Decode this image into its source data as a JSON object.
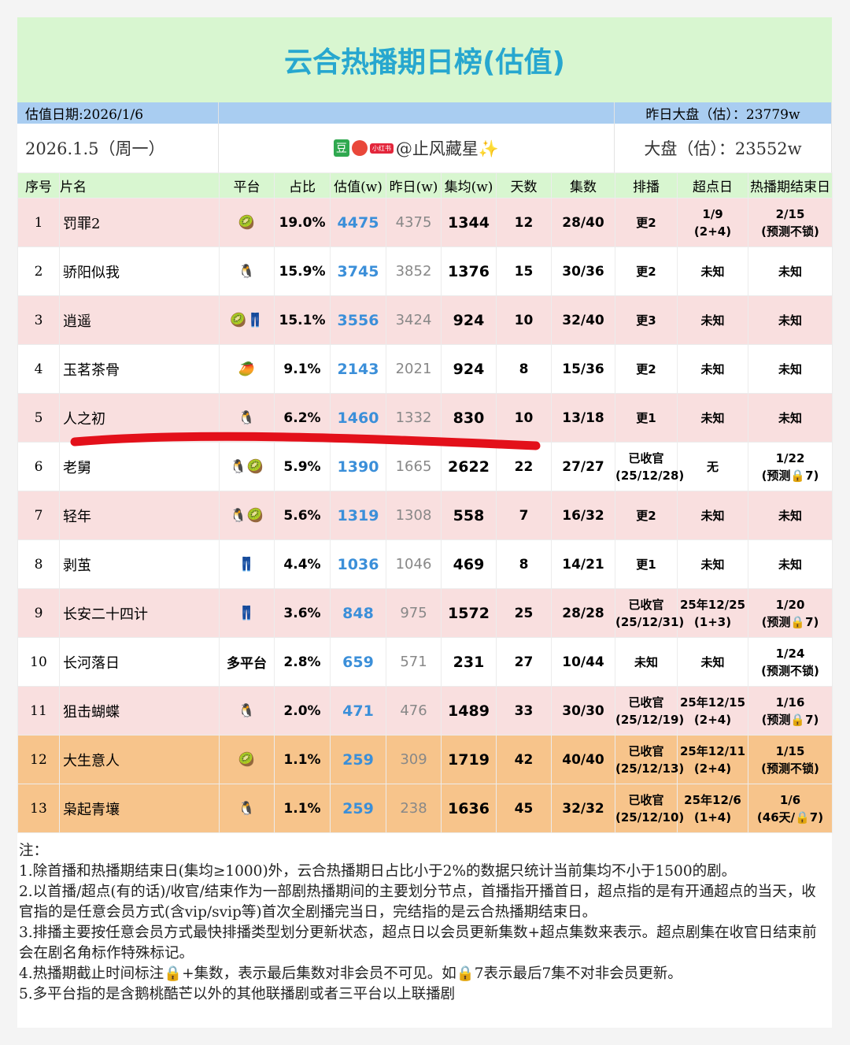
{
  "header": {
    "title": "云合热播期日榜(估值)",
    "estimate_date": "估值日期:2026/1/6",
    "yesterday_total": "昨日大盘（估）：23779w",
    "date": "2026.1.5（周一）",
    "source_badges": [
      "豆",
      "小红书"
    ],
    "author": "@止风藏星✨",
    "total": "大盘（估）：23552w"
  },
  "table": {
    "columns": [
      "序号",
      "片名",
      "平台",
      "占比",
      "估值(w)",
      "昨日(w)",
      "集均(w)",
      "天数",
      "集数",
      "排播",
      "超点日",
      "热播期结束日"
    ],
    "rows": [
      {
        "rank": 1,
        "name": "罚罪2",
        "platform": "🥝",
        "share": "19.0%",
        "est": 4475,
        "yesterday": 4375,
        "avg": 1344,
        "days": 12,
        "eps": "28/40",
        "schedule": [
          "更2"
        ],
        "peak": [
          "1/9",
          "(2+4)"
        ],
        "end": [
          "2/15",
          "(预测不锁)"
        ]
      },
      {
        "rank": 2,
        "name": "骄阳似我",
        "platform": "🐧",
        "share": "15.9%",
        "est": 3745,
        "yesterday": 3852,
        "avg": 1376,
        "days": 15,
        "eps": "30/36",
        "schedule": [
          "更2"
        ],
        "peak": [
          "未知"
        ],
        "end": [
          "未知"
        ]
      },
      {
        "rank": 3,
        "name": "逍遥",
        "platform": "🥝👖",
        "share": "15.1%",
        "est": 3556,
        "yesterday": 3424,
        "avg": 924,
        "days": 10,
        "eps": "32/40",
        "schedule": [
          "更3"
        ],
        "peak": [
          "未知"
        ],
        "end": [
          "未知"
        ]
      },
      {
        "rank": 4,
        "name": "玉茗茶骨",
        "platform": "🥭",
        "share": "9.1%",
        "est": 2143,
        "yesterday": 2021,
        "avg": 924,
        "days": 8,
        "eps": "15/36",
        "schedule": [
          "更2"
        ],
        "peak": [
          "未知"
        ],
        "end": [
          "未知"
        ]
      },
      {
        "rank": 5,
        "name": "人之初",
        "platform": "🐧",
        "share": "6.2%",
        "est": 1460,
        "yesterday": 1332,
        "avg": 830,
        "days": 10,
        "eps": "13/18",
        "schedule": [
          "更1"
        ],
        "peak": [
          "未知"
        ],
        "end": [
          "未知"
        ]
      },
      {
        "rank": 6,
        "name": "老舅",
        "platform": "🐧🥝",
        "share": "5.9%",
        "est": 1390,
        "yesterday": 1665,
        "avg": 2622,
        "days": 22,
        "eps": "27/27",
        "schedule": [
          "已收官",
          "(25/12/28)"
        ],
        "peak": [
          "无"
        ],
        "end": [
          "1/22",
          "(预测🔒7)"
        ]
      },
      {
        "rank": 7,
        "name": "轻年",
        "platform": "🐧🥝",
        "share": "5.6%",
        "est": 1319,
        "yesterday": 1308,
        "avg": 558,
        "days": 7,
        "eps": "16/32",
        "schedule": [
          "更2"
        ],
        "peak": [
          "未知"
        ],
        "end": [
          "未知"
        ]
      },
      {
        "rank": 8,
        "name": "剥茧",
        "platform": "👖",
        "share": "4.4%",
        "est": 1036,
        "yesterday": 1046,
        "avg": 469,
        "days": 8,
        "eps": "14/21",
        "schedule": [
          "更1"
        ],
        "peak": [
          "未知"
        ],
        "end": [
          "未知"
        ]
      },
      {
        "rank": 9,
        "name": "长安二十四计",
        "platform": "👖",
        "share": "3.6%",
        "est": 848,
        "yesterday": 975,
        "avg": 1572,
        "days": 25,
        "eps": "28/28",
        "schedule": [
          "已收官",
          "(25/12/31)"
        ],
        "peak": [
          "25年12/25",
          "(1+3)"
        ],
        "end": [
          "1/20",
          "(预测🔒7)"
        ]
      },
      {
        "rank": 10,
        "name": "长河落日",
        "platform": "多平台",
        "share": "2.8%",
        "est": 659,
        "yesterday": 571,
        "avg": 231,
        "days": 27,
        "eps": "10/44",
        "schedule": [
          "未知"
        ],
        "peak": [
          "未知"
        ],
        "end": [
          "1/24",
          "(预测不锁)"
        ]
      },
      {
        "rank": 11,
        "name": "狙击蝴蝶",
        "platform": "🐧",
        "share": "2.0%",
        "est": 471,
        "yesterday": 476,
        "avg": 1489,
        "days": 33,
        "eps": "30/30",
        "schedule": [
          "已收官",
          "(25/12/19)"
        ],
        "peak": [
          "25年12/15",
          "(2+4)"
        ],
        "end": [
          "1/16",
          "(预测🔒7)"
        ]
      },
      {
        "rank": 12,
        "name": "大生意人",
        "platform": "🥝",
        "share": "1.1%",
        "est": 259,
        "yesterday": 309,
        "avg": 1719,
        "days": 42,
        "eps": "40/40",
        "schedule": [
          "已收官",
          "(25/12/13)"
        ],
        "peak": [
          "25年12/11",
          "(2+4)"
        ],
        "end": [
          "1/15",
          "(预测不锁)"
        ]
      },
      {
        "rank": 13,
        "name": "枭起青壤",
        "platform": "🐧",
        "share": "1.1%",
        "est": 259,
        "yesterday": 238,
        "avg": 1636,
        "days": 45,
        "eps": "32/32",
        "schedule": [
          "已收官",
          "(25/12/10)"
        ],
        "peak": [
          "25年12/6",
          "(1+4)"
        ],
        "end": [
          "1/6",
          "(46天/🔒7)"
        ]
      }
    ]
  },
  "notes": {
    "title": "注：",
    "items": [
      "1.除首播和热播期结束日(集均≥1000)外，云合热播期日占比小于2%的数据只统计当前集均不小于1500的剧。",
      "2.以首播/超点(有的话)/收官/结束作为一部剧热播期间的主要划分节点，首播指开播首日，超点指的是有开通超点的当天，收官指的是任意会员方式(含vip/svip等)首次全剧播完当日，完结指的是云合热播期结束日。",
      "3.排播主要按任意会员方式最快排播类型划分更新状态，超点日以会员更新集数+超点集数来表示。超点剧集在收官日结束前会在剧名角标作特殊标记。",
      "4.热播期截止时间标注🔒+集数，表示最后集数对非会员不可见。如🔒7表示最后7集不对非会员更新。",
      "5.多平台指的是含鹅桃酷芒以外的其他联播剧或者三平台以上联播剧"
    ]
  }
}
